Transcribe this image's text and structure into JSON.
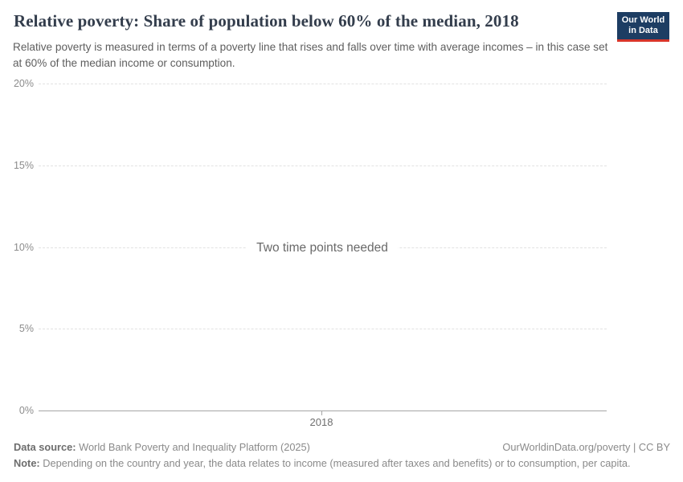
{
  "header": {
    "title": "Relative poverty: Share of population below 60% of the median, 2018",
    "subtitle": "Relative poverty is measured in terms of a poverty line that rises and falls over time with average incomes – in this case set at 60% of the median income or consumption.",
    "logo": {
      "line1": "Our World",
      "line2": "in Data",
      "background_color": "#1d3d63",
      "bar_color": "#d8352a"
    }
  },
  "chart_data": {
    "type": "line",
    "title": "Relative poverty: Share of population below 60% of the median, 2018",
    "series": [],
    "empty_state_message": "Two time points needed",
    "x_tick_labels": [
      "2018"
    ],
    "y_tick_labels": [
      "20%",
      "15%",
      "10%",
      "5%",
      "0%"
    ],
    "ylim": [
      0,
      20
    ],
    "y_unit": "%",
    "grid": "horizontal dashed gridlines at 5% intervals, solid baseline at 0%",
    "legend_position": "none"
  },
  "footer": {
    "datasource_label": "Data source:",
    "datasource_text": "World Bank Poverty and Inequality Platform (2025)",
    "rights_text": "OurWorldinData.org/poverty | CC BY",
    "note_label": "Note:",
    "note_text": "Depending on the country and year, the data relates to income (measured after taxes and benefits) or to consumption, per capita."
  }
}
